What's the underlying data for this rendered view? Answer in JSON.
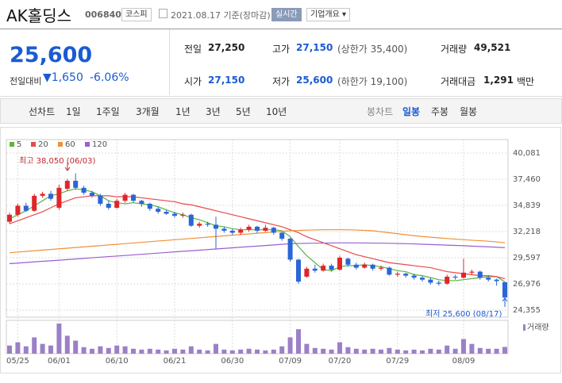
{
  "header": {
    "title": "AK홀딩스",
    "code": "006840",
    "market": "코스피",
    "date": "2021.08.17 기준(장마감)",
    "realtime": "실시간",
    "company_info": "기업개요"
  },
  "summary": {
    "price": "25,600",
    "change_label": "전일대비",
    "change": "1,650",
    "change_rate": "-6.06%",
    "stats": [
      {
        "label": "전일",
        "value": "27,250"
      },
      {
        "label": "고가",
        "value": "27,150",
        "note": "(상한가 35,400)"
      },
      {
        "label": "거래량",
        "value": "49,521"
      },
      {
        "label": "시가",
        "value": "27,150"
      },
      {
        "label": "저가",
        "value": "25,600",
        "note": "(하한가 19,100)"
      },
      {
        "label": "거래대금",
        "value": "1,291",
        "unit": "백만"
      }
    ]
  },
  "tabs": {
    "line_chart": "선차트",
    "line_periods": [
      "1일",
      "1주일",
      "3개월",
      "1년",
      "3년",
      "5년",
      "10년"
    ],
    "candle_chart": "봉차트",
    "candle_periods": [
      "일봉",
      "주봉",
      "월봉"
    ],
    "active": "일봉"
  },
  "chart_data": {
    "type": "candlestick",
    "categories": [
      null,
      "05/25",
      null,
      null,
      null,
      null,
      "06/01",
      null,
      null,
      null,
      null,
      null,
      null,
      "06/10",
      null,
      null,
      null,
      null,
      null,
      null,
      "06/21",
      null,
      null,
      null,
      null,
      null,
      null,
      "06/30",
      null,
      null,
      null,
      null,
      null,
      null,
      "07/09",
      null,
      null,
      null,
      null,
      null,
      "07/20",
      null,
      null,
      null,
      null,
      null,
      null,
      "07/29",
      null,
      null,
      null,
      null,
      null,
      null,
      null,
      "08/09",
      null,
      null,
      null,
      null,
      null
    ],
    "open": [
      33200,
      33900,
      34800,
      34300,
      35800,
      36000,
      34600,
      36500,
      37300,
      36600,
      36100,
      35800,
      35000,
      34600,
      35300,
      35900,
      35300,
      35000,
      34500,
      34200,
      34000,
      33800,
      33900,
      32800,
      33000,
      32900,
      32500,
      32300,
      32100,
      32400,
      32700,
      32300,
      32600,
      32100,
      31500,
      29400,
      27700,
      28500,
      28300,
      28800,
      28400,
      29500,
      28900,
      28600,
      28900,
      28500,
      28600,
      27900,
      28000,
      27800,
      27600,
      27400,
      27100,
      27000,
      27700,
      27600,
      28100,
      28200,
      27600,
      27400,
      27150
    ],
    "high": [
      34100,
      35000,
      35100,
      36000,
      36200,
      36300,
      36900,
      37500,
      38050,
      36800,
      36300,
      36000,
      35300,
      35500,
      36100,
      36000,
      35400,
      35100,
      34700,
      34400,
      34200,
      34100,
      34000,
      33200,
      33200,
      33700,
      32700,
      32500,
      32600,
      32900,
      32800,
      32900,
      32700,
      32200,
      31600,
      29500,
      28700,
      28900,
      29000,
      29000,
      29800,
      29600,
      29100,
      29100,
      29000,
      28800,
      28700,
      28200,
      28100,
      28000,
      27800,
      27600,
      27300,
      27900,
      27900,
      29500,
      28400,
      28300,
      27800,
      27500,
      27150
    ],
    "low": [
      33000,
      33700,
      34200,
      34200,
      35600,
      35300,
      34400,
      36300,
      36400,
      35900,
      35600,
      34800,
      34400,
      34500,
      35100,
      35100,
      34700,
      34300,
      34000,
      33900,
      33600,
      33600,
      32700,
      32600,
      32700,
      30500,
      32100,
      31900,
      31900,
      32200,
      32100,
      32200,
      31900,
      31300,
      29200,
      27000,
      27600,
      28100,
      28200,
      28200,
      28300,
      28700,
      28400,
      28500,
      28300,
      28300,
      27800,
      27700,
      27600,
      27400,
      27200,
      26900,
      26800,
      26900,
      27400,
      27500,
      27900,
      27400,
      27200,
      26800,
      25600
    ],
    "close": [
      33900,
      34800,
      34300,
      35800,
      36000,
      35500,
      36600,
      37300,
      36600,
      36100,
      35800,
      35000,
      34600,
      35300,
      35900,
      35300,
      35000,
      34500,
      34200,
      34000,
      33800,
      33900,
      32800,
      33000,
      32900,
      32500,
      32300,
      32100,
      32400,
      32700,
      32300,
      32600,
      32100,
      31500,
      29400,
      27200,
      28500,
      28300,
      28800,
      28400,
      29600,
      28900,
      28600,
      28900,
      28500,
      28600,
      27900,
      28000,
      27800,
      27600,
      27400,
      27100,
      27000,
      27700,
      27600,
      28100,
      28200,
      27600,
      27400,
      27250,
      25600
    ],
    "up_color": "#e0262b",
    "down_color": "#2a66d6",
    "series": [
      {
        "name": "5",
        "color": "#5bb53f",
        "values": [
          33500,
          33900,
          34300,
          34800,
          35300,
          35800,
          36000,
          36300,
          36500,
          36400,
          36200,
          35800,
          35300,
          35100,
          35000,
          35100,
          35000,
          34900,
          34700,
          34400,
          34100,
          33900,
          33600,
          33400,
          33100,
          32800,
          32700,
          32500,
          32400,
          32400,
          32400,
          32400,
          32400,
          32300,
          31700,
          30700,
          29800,
          29100,
          28400,
          28300,
          28700,
          28800,
          28800,
          28900,
          28800,
          28700,
          28500,
          28300,
          28200,
          27900,
          27800,
          27600,
          27400,
          27300,
          27300,
          27400,
          27500,
          27600,
          27700,
          27700,
          27200
        ]
      },
      {
        "name": "20",
        "color": "#e84a4a",
        "values": [
          33000,
          33300,
          33600,
          33900,
          34200,
          34600,
          35000,
          35300,
          35600,
          35700,
          35800,
          35800,
          35800,
          35700,
          35700,
          35700,
          35600,
          35500,
          35400,
          35300,
          35200,
          35000,
          34900,
          34700,
          34500,
          34300,
          34100,
          33900,
          33700,
          33500,
          33300,
          33100,
          32900,
          32700,
          32400,
          32100,
          31700,
          31400,
          31100,
          30800,
          30500,
          30200,
          29900,
          29700,
          29500,
          29300,
          29100,
          29000,
          28900,
          28800,
          28700,
          28600,
          28400,
          28200,
          28100,
          28000,
          27900,
          27800,
          27800,
          27700,
          27500
        ]
      },
      {
        "name": "60",
        "color": "#f0913a",
        "values": [
          30100,
          30160,
          30230,
          30290,
          30360,
          30420,
          30490,
          30550,
          30620,
          30680,
          30750,
          30810,
          30880,
          30940,
          31010,
          31070,
          31140,
          31200,
          31270,
          31330,
          31400,
          31460,
          31530,
          31590,
          31660,
          31720,
          31790,
          31850,
          31920,
          31980,
          32050,
          32110,
          32180,
          32240,
          32300,
          32330,
          32360,
          32380,
          32400,
          32400,
          32400,
          32390,
          32370,
          32340,
          32300,
          32200,
          32100,
          32000,
          31900,
          31800,
          31720,
          31650,
          31580,
          31520,
          31460,
          31400,
          31350,
          31300,
          31250,
          31180,
          31100
        ]
      },
      {
        "name": "120",
        "color": "#9a5fd0",
        "values": [
          29000,
          29060,
          29120,
          29180,
          29240,
          29290,
          29350,
          29410,
          29470,
          29530,
          29590,
          29650,
          29710,
          29760,
          29820,
          29880,
          29940,
          30000,
          30060,
          30120,
          30180,
          30240,
          30290,
          30350,
          30410,
          30470,
          30530,
          30590,
          30650,
          30710,
          30760,
          30820,
          30880,
          30940,
          31000,
          31020,
          31040,
          31050,
          31060,
          31070,
          31080,
          31080,
          31080,
          31070,
          31060,
          31050,
          31040,
          31020,
          31000,
          30980,
          30950,
          30920,
          30890,
          30860,
          30830,
          30800,
          30760,
          30720,
          30690,
          30650,
          30600
        ]
      }
    ],
    "volume": {
      "name": "거래량",
      "color": "#9b80c9",
      "values": [
        60000,
        84000,
        54000,
        120000,
        72000,
        60000,
        222000,
        132000,
        96000,
        48000,
        36000,
        54000,
        42000,
        60000,
        54000,
        36000,
        30000,
        36000,
        30000,
        24000,
        36000,
        30000,
        54000,
        30000,
        24000,
        72000,
        30000,
        24000,
        30000,
        36000,
        30000,
        24000,
        30000,
        54000,
        120000,
        180000,
        72000,
        42000,
        36000,
        30000,
        84000,
        48000,
        36000,
        30000,
        36000,
        30000,
        42000,
        30000,
        24000,
        30000,
        24000,
        36000,
        30000,
        60000,
        36000,
        108000,
        72000,
        42000,
        36000,
        36000,
        49521
      ]
    },
    "ylim": [
      24355,
      40081
    ],
    "yticks": [
      {
        "value": 24355,
        "label": "24,355"
      },
      {
        "value": 26976,
        "label": "26,976"
      },
      {
        "value": 29597,
        "label": "29,597"
      },
      {
        "value": 32218,
        "label": "32,218"
      },
      {
        "value": 34839,
        "label": "34,839"
      },
      {
        "value": 37460,
        "label": "37,460"
      },
      {
        "value": 40081,
        "label": "40,081"
      }
    ],
    "grid": true,
    "high_annotation": "최고 38,050 (06/03)",
    "low_annotation": "최저 25,600 (08/17)"
  }
}
